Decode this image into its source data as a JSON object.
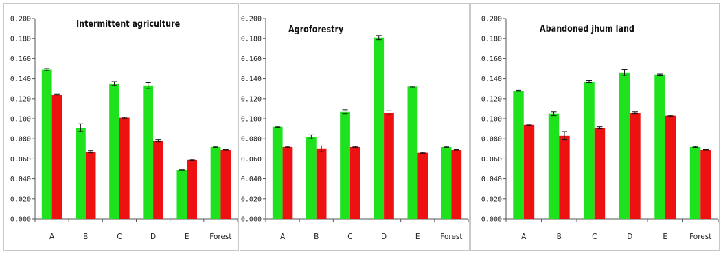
{
  "colors": {
    "series_a": "#1fe21f",
    "series_b": "#ee1111"
  },
  "chart_data": [
    {
      "type": "bar",
      "title": "Intermittent agriculture",
      "categories": [
        "A",
        "B",
        "C",
        "D",
        "E",
        "Forest"
      ],
      "series": [
        {
          "values": [
            0.149,
            0.091,
            0.135,
            0.133,
            0.049,
            0.072
          ],
          "errors": [
            0.001,
            0.004,
            0.002,
            0.003,
            0.0005,
            0.0005
          ]
        },
        {
          "values": [
            0.124,
            0.067,
            0.101,
            0.078,
            0.059,
            0.069
          ],
          "errors": [
            0.0005,
            0.001,
            0.0005,
            0.001,
            0.0005,
            0.0005
          ]
        }
      ],
      "yticks": [
        "0.000",
        "0.020",
        "0.040",
        "0.060",
        "0.080",
        "0.100",
        "0.120",
        "0.140",
        "0.160",
        "0.180",
        "0.200"
      ],
      "ylim": [
        0,
        0.2
      ],
      "grid": false
    },
    {
      "type": "bar",
      "title": "Agroforestry",
      "categories": [
        "A",
        "B",
        "C",
        "D",
        "E",
        "Forest"
      ],
      "series": [
        {
          "values": [
            0.092,
            0.082,
            0.107,
            0.181,
            0.132,
            0.072
          ],
          "errors": [
            0.0005,
            0.002,
            0.002,
            0.002,
            0.0005,
            0.0005
          ]
        },
        {
          "values": [
            0.072,
            0.07,
            0.072,
            0.106,
            0.066,
            0.069
          ],
          "errors": [
            0.0005,
            0.003,
            0.0005,
            0.002,
            0.0005,
            0.0005
          ]
        }
      ],
      "yticks": [
        "0.000",
        "0.020",
        "0.040",
        "0.060",
        "0.080",
        "0.100",
        "0.120",
        "0.140",
        "0.160",
        "0.180",
        "0.200"
      ],
      "ylim": [
        0,
        0.2
      ],
      "grid": false
    },
    {
      "type": "bar",
      "title": "Abandoned jhum land",
      "categories": [
        "A",
        "B",
        "C",
        "D",
        "E",
        "Forest"
      ],
      "series": [
        {
          "values": [
            0.128,
            0.105,
            0.137,
            0.146,
            0.144,
            0.072
          ],
          "errors": [
            0.0005,
            0.002,
            0.001,
            0.003,
            0.0005,
            0.0005
          ]
        },
        {
          "values": [
            0.094,
            0.083,
            0.091,
            0.106,
            0.103,
            0.069
          ],
          "errors": [
            0.0005,
            0.004,
            0.001,
            0.001,
            0.0005,
            0.0005
          ]
        }
      ],
      "yticks": [
        "0.000",
        "0.020",
        "0.040",
        "0.060",
        "0.080",
        "0.100",
        "0.120",
        "0.140",
        "0.160",
        "0.180",
        "0.200"
      ],
      "ylim": [
        0,
        0.2
      ],
      "grid": false
    }
  ]
}
